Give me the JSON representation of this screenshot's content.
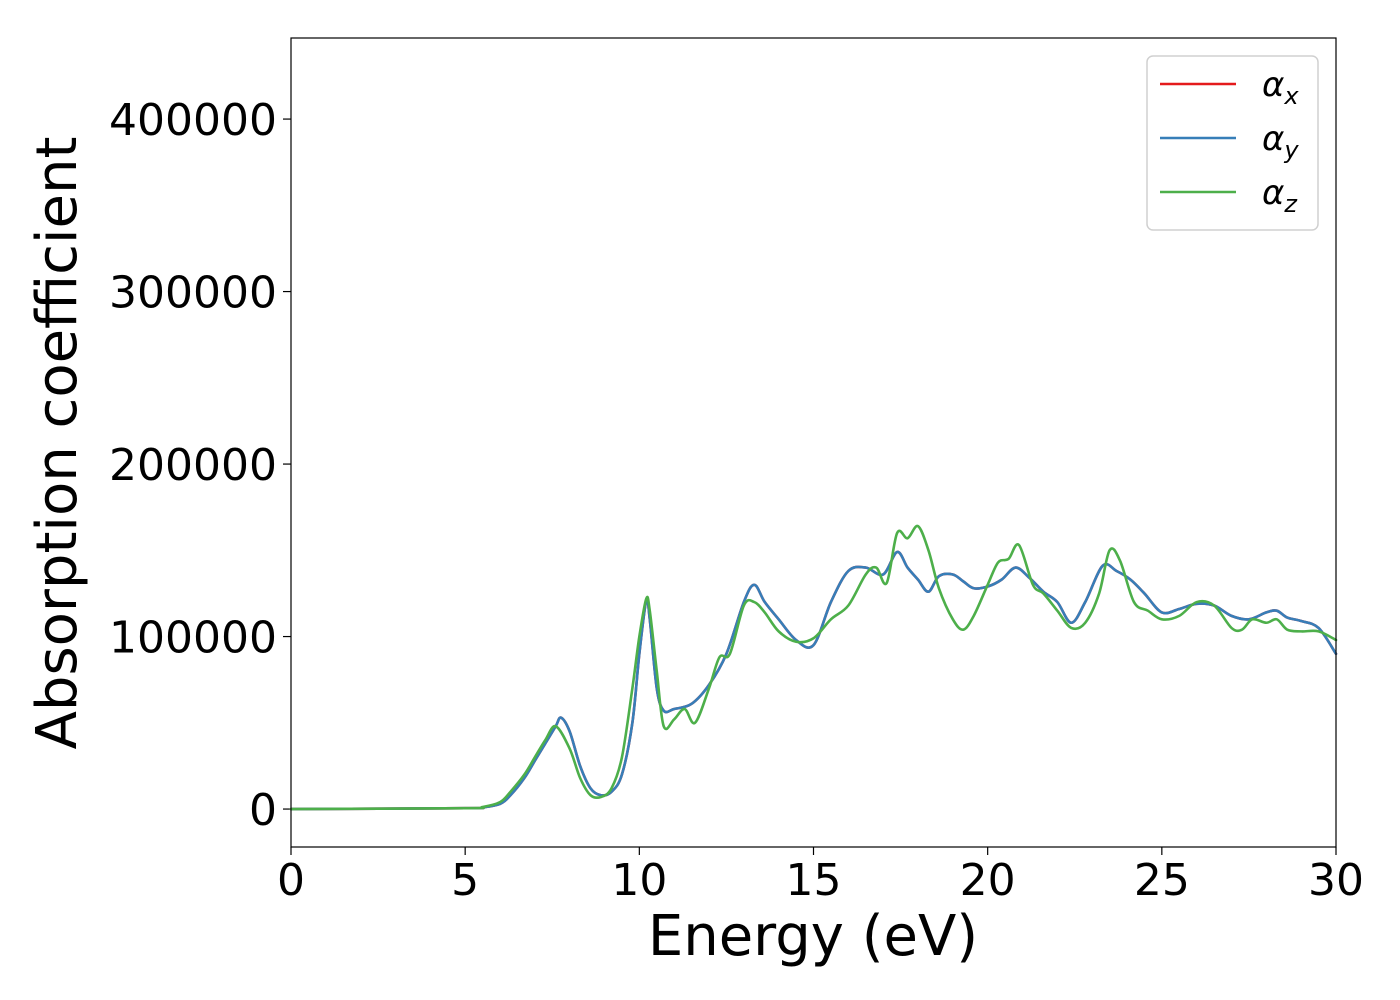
{
  "chart_data": {
    "type": "line",
    "title": "",
    "xlabel": "Energy (eV)",
    "ylabel": "Absorption coefficient",
    "xlim": [
      0,
      30
    ],
    "ylim": [
      -22000,
      447000
    ],
    "xticks": [
      0,
      5,
      10,
      15,
      20,
      25,
      30
    ],
    "xtick_labels": [
      "0",
      "5",
      "10",
      "15",
      "20",
      "25",
      "30"
    ],
    "yticks": [
      0,
      100000,
      200000,
      300000,
      400000
    ],
    "ytick_labels": [
      "0",
      "100000",
      "200000",
      "300000",
      "400000"
    ],
    "grid": false,
    "legend_position": "top-right",
    "series": [
      {
        "name": "x",
        "color": "#e41a1c",
        "x": [
          0,
          5,
          5.5,
          6,
          6.3,
          6.7,
          7,
          7.3,
          7.6,
          7.75,
          8,
          8.3,
          8.6,
          8.9,
          9.2,
          9.5,
          9.8,
          10.0,
          10.2,
          10.3,
          10.5,
          10.7,
          11,
          11.5,
          12,
          12.5,
          13,
          13.3,
          13.6,
          14,
          14.5,
          15,
          15.5,
          16,
          16.5,
          17,
          17.4,
          17.7,
          18,
          18.3,
          18.6,
          19,
          19.3,
          19.6,
          20,
          20.4,
          20.8,
          21.2,
          21.6,
          22,
          22.4,
          22.8,
          23.3,
          23.7,
          24.1,
          24.5,
          25,
          25.5,
          26,
          26.5,
          27,
          27.5,
          28,
          28.3,
          28.6,
          29,
          29.5,
          30
        ],
        "y": [
          0,
          500,
          1000,
          3000,
          8000,
          18000,
          28000,
          38000,
          48000,
          53000,
          45000,
          25000,
          12000,
          8000,
          10000,
          20000,
          50000,
          90000,
          121000,
          110000,
          70000,
          57000,
          58000,
          61000,
          72000,
          90000,
          120000,
          130000,
          120000,
          110000,
          98000,
          95000,
          120000,
          138000,
          140000,
          136000,
          149000,
          140000,
          133000,
          126000,
          135000,
          136000,
          132000,
          128000,
          129000,
          133000,
          140000,
          134000,
          126000,
          120000,
          108000,
          120000,
          141000,
          138000,
          133000,
          125000,
          114000,
          116000,
          119000,
          118000,
          112000,
          110000,
          114000,
          115000,
          111000,
          109000,
          105000,
          90000
        ]
      },
      {
        "name": "y",
        "color": "#377eb8",
        "x": [
          0,
          5,
          5.5,
          6,
          6.3,
          6.7,
          7,
          7.3,
          7.6,
          7.75,
          8,
          8.3,
          8.6,
          8.9,
          9.2,
          9.5,
          9.8,
          10.0,
          10.2,
          10.3,
          10.5,
          10.7,
          11,
          11.5,
          12,
          12.5,
          13,
          13.3,
          13.6,
          14,
          14.5,
          15,
          15.5,
          16,
          16.5,
          17,
          17.4,
          17.7,
          18,
          18.3,
          18.6,
          19,
          19.3,
          19.6,
          20,
          20.4,
          20.8,
          21.2,
          21.6,
          22,
          22.4,
          22.8,
          23.3,
          23.7,
          24.1,
          24.5,
          25,
          25.5,
          26,
          26.5,
          27,
          27.5,
          28,
          28.3,
          28.6,
          29,
          29.5,
          30
        ],
        "y": [
          0,
          500,
          1000,
          3000,
          8000,
          18000,
          28000,
          38000,
          48000,
          53000,
          45000,
          25000,
          12000,
          8000,
          10000,
          20000,
          50000,
          90000,
          121000,
          110000,
          70000,
          57000,
          58000,
          61000,
          72000,
          90000,
          120000,
          130000,
          120000,
          110000,
          98000,
          95000,
          120000,
          138000,
          140000,
          136000,
          149000,
          140000,
          133000,
          126000,
          135000,
          136000,
          132000,
          128000,
          129000,
          133000,
          140000,
          134000,
          126000,
          120000,
          108000,
          120000,
          141000,
          138000,
          133000,
          125000,
          114000,
          116000,
          119000,
          118000,
          112000,
          110000,
          114000,
          115000,
          111000,
          109000,
          105000,
          90000
        ]
      },
      {
        "name": "z",
        "color": "#4daf4a",
        "x": [
          0,
          5,
          5.5,
          6,
          6.3,
          6.7,
          7,
          7.3,
          7.6,
          8,
          8.3,
          8.6,
          8.9,
          9.2,
          9.5,
          9.8,
          10.0,
          10.2,
          10.3,
          10.5,
          10.7,
          11,
          11.3,
          11.6,
          12,
          12.3,
          12.6,
          13,
          13.3,
          13.6,
          14,
          14.5,
          15,
          15.5,
          16,
          16.5,
          16.8,
          17.1,
          17.4,
          17.7,
          18,
          18.3,
          18.6,
          19,
          19.3,
          19.6,
          20,
          20.3,
          20.6,
          20.9,
          21.3,
          21.6,
          22,
          22.4,
          22.8,
          23.2,
          23.5,
          23.8,
          24.2,
          24.6,
          25,
          25.5,
          26,
          26.5,
          27,
          27.3,
          27.6,
          28,
          28.3,
          28.6,
          29,
          29.5,
          30
        ],
        "y": [
          0,
          500,
          1200,
          4000,
          10000,
          20000,
          30000,
          40000,
          48000,
          35000,
          18000,
          8000,
          7000,
          12000,
          30000,
          70000,
          100000,
          122000,
          115000,
          80000,
          48000,
          52000,
          58000,
          50000,
          70000,
          88000,
          90000,
          118000,
          120000,
          114000,
          103000,
          97000,
          99000,
          110000,
          118000,
          136000,
          140000,
          131000,
          160000,
          157000,
          164000,
          150000,
          128000,
          110000,
          104000,
          112000,
          130000,
          143000,
          145000,
          153000,
          130000,
          125000,
          115000,
          105000,
          108000,
          125000,
          150000,
          144000,
          120000,
          115000,
          110000,
          112000,
          120000,
          118000,
          105000,
          104000,
          110000,
          108000,
          110000,
          104000,
          103000,
          103000,
          98000
        ]
      }
    ]
  },
  "legend": {
    "symbol": "α",
    "entries": [
      "x",
      "y",
      "z"
    ]
  }
}
